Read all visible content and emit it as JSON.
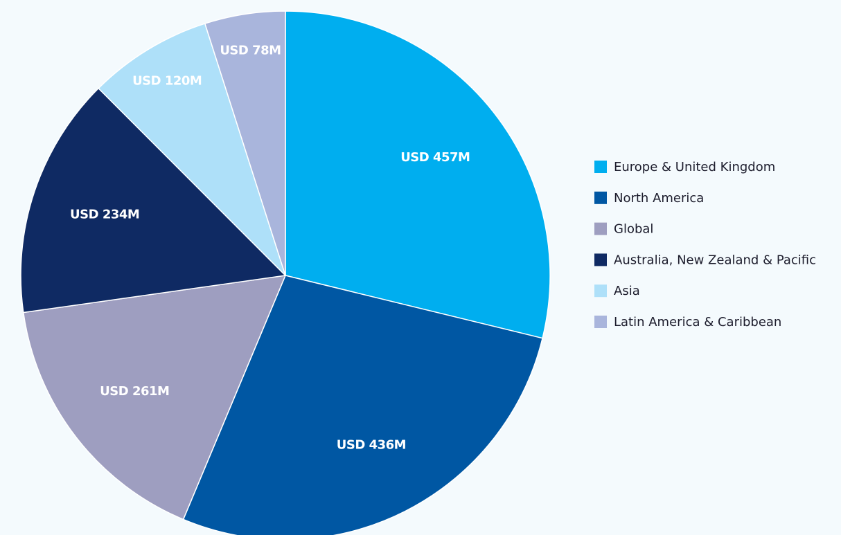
{
  "chart_data": {
    "type": "pie",
    "categories": [
      "Europe & United Kingdom",
      "North America",
      "Global",
      "Australia, New Zealand & Pacific",
      "Asia",
      "Latin America & Caribbean"
    ],
    "values": [
      457,
      436,
      261,
      234,
      120,
      78
    ],
    "value_labels": [
      "USD 457M",
      "USD 436M",
      "USD 261M",
      "USD 234M",
      "USD 120M",
      "USD 78M"
    ],
    "colors": [
      "#00aeef",
      "#0057a3",
      "#9e9ec0",
      "#0f2a63",
      "#aee0f9",
      "#a9b5dc"
    ],
    "legend": "right"
  }
}
